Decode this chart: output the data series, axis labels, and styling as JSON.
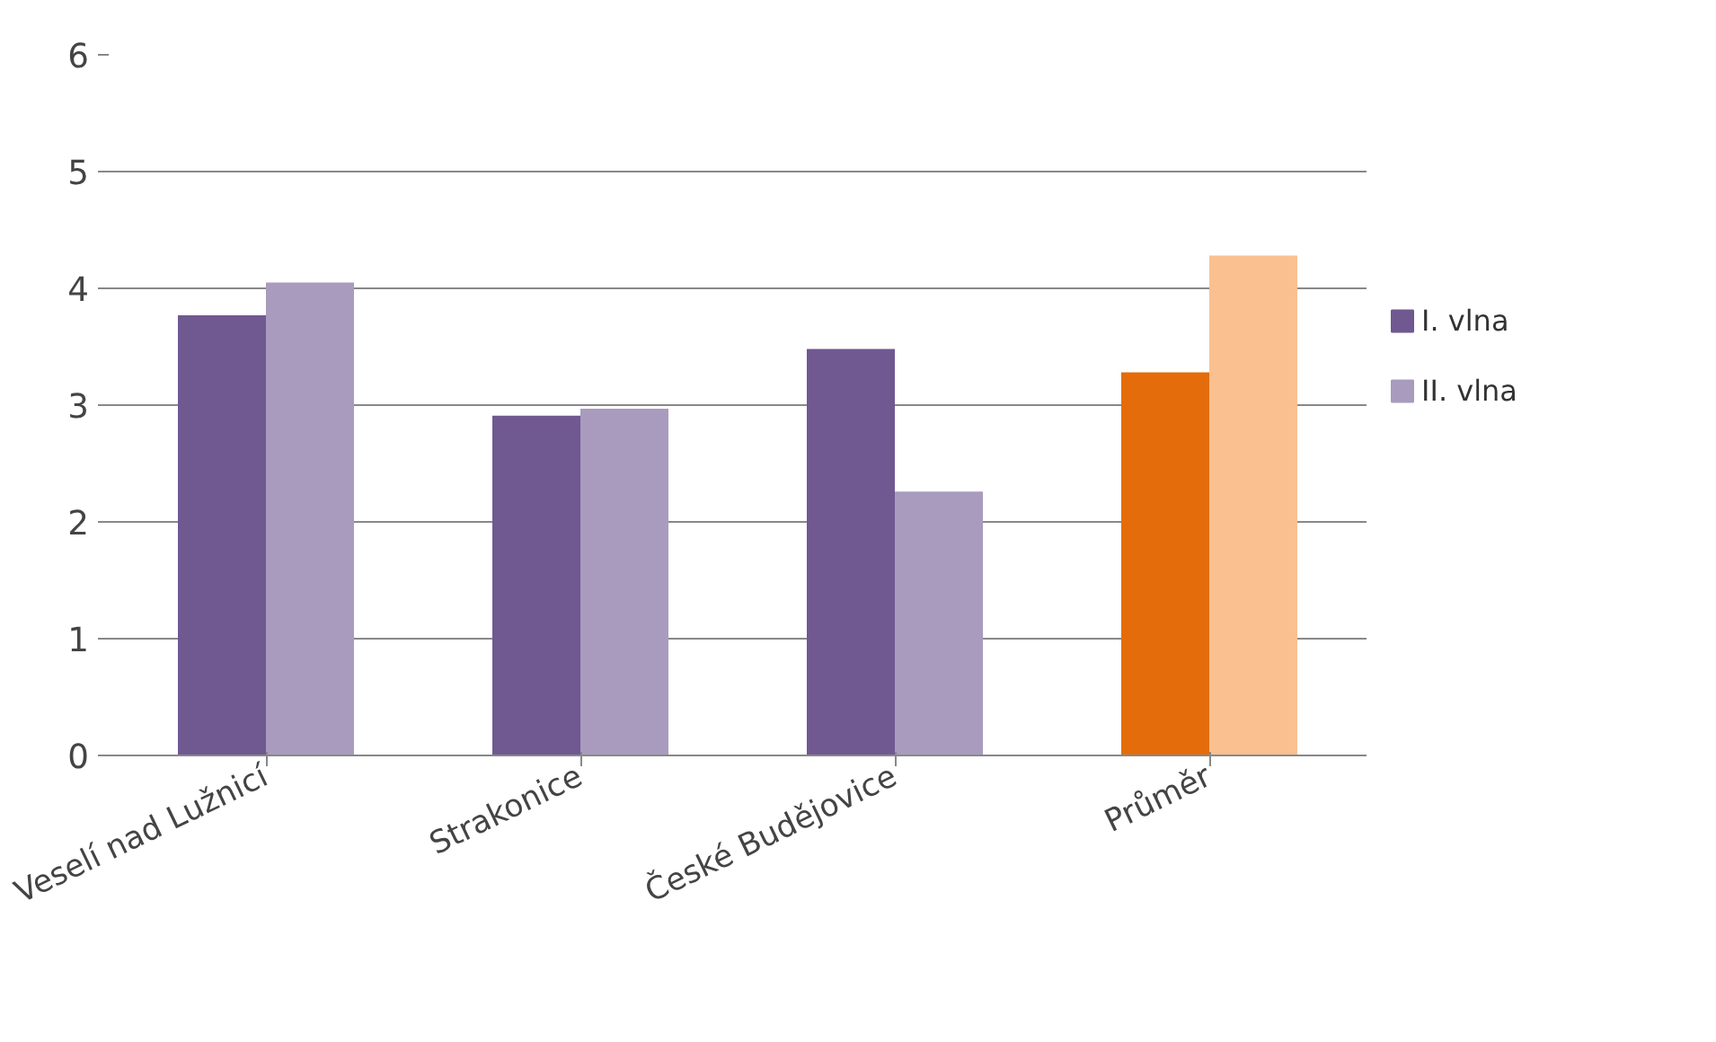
{
  "chart_data": {
    "type": "bar",
    "categories": [
      "Veselí nad Lužnicí",
      "Strakonice",
      "České Budějovice",
      "Průměr"
    ],
    "series": [
      {
        "name": "I. vlna",
        "color": "#705891",
        "colors": [
          "#705891",
          "#705891",
          "#705891",
          "#e46c0a"
        ],
        "values": [
          3.77,
          2.91,
          3.48,
          3.28
        ]
      },
      {
        "name": "II. vlna",
        "color": "#a99bbd",
        "colors": [
          "#a99bbd",
          "#a99bbd",
          "#a99bbd",
          "#fac090"
        ],
        "values": [
          4.05,
          2.97,
          2.26,
          4.28
        ]
      }
    ],
    "ylim": [
      0,
      6
    ],
    "yticks": [
      0,
      1,
      2,
      3,
      4,
      5,
      6
    ],
    "grid": "y",
    "legend": "right"
  }
}
